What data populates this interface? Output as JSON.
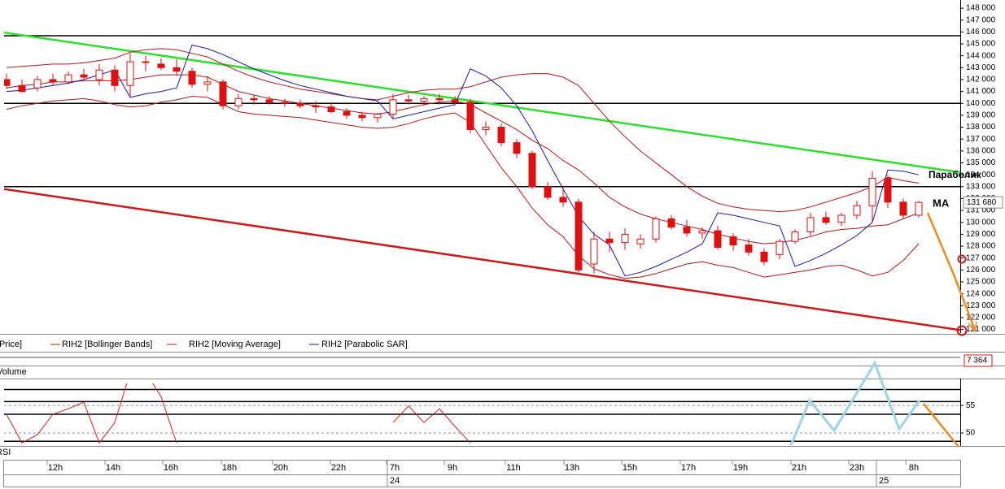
{
  "chart_data": [
    {
      "type": "candlestick",
      "ylim": [
        120700,
        148550
      ],
      "yticks": [
        {
          "value": 121000,
          "label": "121 000"
        },
        {
          "value": 122000,
          "label": "122 000"
        },
        {
          "value": 123000,
          "label": "123 000"
        },
        {
          "value": 124000,
          "label": "124 000"
        },
        {
          "value": 125000,
          "label": "125 000"
        },
        {
          "value": 126000,
          "label": "126 000"
        },
        {
          "value": 127000,
          "label": "127 000"
        },
        {
          "value": 128000,
          "label": "128 000"
        },
        {
          "value": 129000,
          "label": "129 000"
        },
        {
          "value": 130000,
          "label": "130 000"
        },
        {
          "value": 131000,
          "label": "131 000"
        },
        {
          "value": 132000,
          "label": "132 000"
        },
        {
          "value": 133000,
          "label": "133 000"
        },
        {
          "value": 134000,
          "label": "134 000"
        },
        {
          "value": 135000,
          "label": "135 000"
        },
        {
          "value": 136000,
          "label": "136 000"
        },
        {
          "value": 137000,
          "label": "137 000"
        },
        {
          "value": 138000,
          "label": "138 000"
        },
        {
          "value": 139000,
          "label": "139 000"
        },
        {
          "value": 140000,
          "label": "140 000"
        },
        {
          "value": 141000,
          "label": "141 000"
        },
        {
          "value": 142000,
          "label": "142 000"
        },
        {
          "value": 143000,
          "label": "143 000"
        },
        {
          "value": 144000,
          "label": "144 000"
        },
        {
          "value": 145000,
          "label": "145 000"
        },
        {
          "value": 146000,
          "label": "146 000"
        },
        {
          "value": 147000,
          "label": "147 000"
        },
        {
          "value": 148000,
          "label": "148 000"
        }
      ],
      "last_price": {
        "value": 131680,
        "label": "131 680"
      },
      "levels": [
        145680,
        140000,
        133000
      ],
      "trendlines": [
        {
          "color": "#2ee02e",
          "from": 145950,
          "to": 134200
        },
        {
          "color": "#cc1a1a",
          "from": 132800,
          "to": 120950
        }
      ],
      "annotations": [
        "Параболик",
        "MA"
      ],
      "series": [
        {
          "name": "Price]",
          "color": "#dd1111",
          "open": [
            142000,
            141500,
            141300,
            142000,
            141800,
            142400,
            142000,
            142800,
            141500,
            143500,
            143300,
            143000,
            142700,
            141600,
            141800,
            139800,
            140400,
            140300,
            140100,
            140000,
            139800,
            139700,
            139300,
            139000,
            138800,
            139100,
            140300,
            140200,
            140400,
            140300,
            140100,
            137800,
            138000,
            136700,
            135800,
            133000,
            132100,
            131700,
            126500,
            128600,
            128300,
            128200,
            128600,
            130300,
            129600,
            129100,
            129300,
            128800,
            128100,
            127500,
            127300,
            128400,
            129200,
            130400,
            130000,
            130600,
            131400,
            133700,
            131700,
            130600
          ],
          "high": [
            142500,
            142000,
            142300,
            142500,
            142700,
            142900,
            143300,
            143200,
            144200,
            144000,
            143800,
            143700,
            143000,
            142300,
            142000,
            140800,
            140700,
            140600,
            140400,
            140300,
            140200,
            140100,
            139600,
            139300,
            139200,
            140800,
            140700,
            140600,
            140800,
            140600,
            140400,
            138500,
            138300,
            137000,
            136000,
            133400,
            133000,
            132000,
            129200,
            129200,
            129500,
            129000,
            130500,
            130600,
            130200,
            129600,
            129700,
            129100,
            128600,
            127800,
            128600,
            129400,
            130800,
            130900,
            130800,
            131800,
            134300,
            134000,
            132000,
            131800
          ],
          "low": [
            141200,
            140900,
            141000,
            141500,
            141600,
            142000,
            141500,
            141000,
            140500,
            142700,
            142800,
            142300,
            141300,
            141000,
            139500,
            139500,
            139900,
            139900,
            139700,
            139600,
            139200,
            139200,
            138700,
            138500,
            138400,
            138700,
            139900,
            139800,
            139900,
            139800,
            137500,
            137300,
            136400,
            135400,
            132800,
            131900,
            131300,
            125700,
            125700,
            127500,
            127700,
            127800,
            128300,
            129400,
            128800,
            128600,
            127700,
            127600,
            127200,
            126400,
            126900,
            128200,
            128800,
            129800,
            129700,
            130300,
            130000,
            131200,
            130300,
            130400
          ],
          "close": [
            141500,
            141000,
            142000,
            141800,
            142400,
            142200,
            142800,
            141500,
            143500,
            143500,
            143000,
            142700,
            141600,
            141800,
            139800,
            140400,
            140300,
            140100,
            140000,
            139800,
            139700,
            139300,
            139000,
            138800,
            139100,
            140300,
            140200,
            140400,
            140300,
            140100,
            137800,
            138000,
            136700,
            135800,
            133000,
            132100,
            131700,
            126000,
            128600,
            128300,
            129000,
            128600,
            130300,
            129600,
            129100,
            129300,
            127900,
            128100,
            127500,
            126700,
            128400,
            129200,
            130400,
            130000,
            130600,
            131400,
            133700,
            131700,
            130600,
            131680
          ]
        },
        {
          "name": "RIH2 [Bollinger Bands]",
          "color": "#b01818",
          "upper": [
            143000,
            143100,
            143200,
            143300,
            143300,
            143400,
            143600,
            143800,
            144300,
            144500,
            144600,
            144500,
            144200,
            143900,
            143300,
            142700,
            142200,
            141800,
            141500,
            141200,
            141000,
            140800,
            140600,
            140400,
            140300,
            140600,
            140900,
            141100,
            141200,
            141200,
            141400,
            141800,
            142200,
            142400,
            142500,
            142500,
            142200,
            141500,
            140000,
            138500,
            137200,
            136000,
            135000,
            134000,
            133000,
            132200,
            131600,
            131300,
            131100,
            131000,
            130900,
            131000,
            131300,
            131700,
            132100,
            132500,
            133000,
            133800,
            133500,
            133300
          ],
          "lower": [
            139500,
            139800,
            140000,
            140200,
            140300,
            140400,
            140200,
            139900,
            139700,
            139800,
            140100,
            140300,
            140600,
            140500,
            139900,
            139300,
            139100,
            139000,
            138900,
            138800,
            138600,
            138400,
            138200,
            138000,
            137900,
            138000,
            138300,
            138700,
            139000,
            139200,
            138400,
            136500,
            134600,
            133000,
            131200,
            129800,
            128800,
            127200,
            126100,
            125600,
            125300,
            125400,
            125700,
            126100,
            126500,
            126700,
            126400,
            126200,
            125800,
            125400,
            125600,
            125800,
            126000,
            126300,
            126400,
            126000,
            125500,
            125800,
            126800,
            128200
          ]
        },
        {
          "name": "RIH2 [Moving Average]",
          "color": "#b01818",
          "values": [
            141300,
            141500,
            141600,
            141800,
            141800,
            141900,
            141900,
            141900,
            142000,
            142200,
            142400,
            142400,
            142400,
            142200,
            141600,
            141000,
            140700,
            140400,
            140200,
            140000,
            139800,
            139600,
            139400,
            139200,
            139100,
            139300,
            139600,
            139900,
            140100,
            140200,
            139900,
            139200,
            138500,
            137800,
            136900,
            136200,
            135200,
            134400,
            133300,
            132100,
            131300,
            130700,
            130300,
            130000,
            129700,
            129400,
            129000,
            128700,
            128400,
            128200,
            128300,
            128500,
            128800,
            129200,
            129400,
            129500,
            129700,
            129800,
            130300,
            130800
          ]
        },
        {
          "name": "RIH2 [Parabolic SAR]",
          "color": "#1a1aa0",
          "values": [
            141000,
            141100,
            141300,
            141500,
            141700,
            142000,
            142400,
            142800,
            140500,
            140800,
            141000,
            141300,
            144900,
            144600,
            144100,
            143500,
            142900,
            142400,
            141900,
            141500,
            141200,
            140900,
            140600,
            140400,
            140200,
            138700,
            139000,
            139300,
            139600,
            139900,
            142900,
            142300,
            141300,
            139800,
            137700,
            135200,
            132800,
            130500,
            129000,
            128100,
            125500,
            125800,
            126300,
            126900,
            127500,
            128200,
            130800,
            130600,
            130300,
            130000,
            129700,
            126300,
            126800,
            127400,
            128100,
            128900,
            130000,
            134400,
            134300,
            134000
          ]
        }
      ]
    },
    {
      "type": "volume",
      "label": "Volume",
      "last_value": {
        "value": 7364,
        "label": "7 364"
      }
    },
    {
      "type": "line",
      "label": "RSI",
      "color": "#cc2222",
      "ylim": [
        47.8,
        59.0
      ],
      "yticks": [
        50,
        55
      ],
      "levels": [
        57.9,
        55.7,
        53.4,
        48.5
      ],
      "values": [
        53.4,
        48.2,
        49.7,
        53.4,
        54.4,
        55.6,
        48.2,
        51.9,
        61,
        61,
        56.6,
        48.2,
        null,
        null,
        null,
        null,
        null,
        null,
        null,
        null,
        null,
        null,
        null,
        null,
        null,
        51.9,
        54.9,
        51.9,
        54.4,
        51.2,
        48.2,
        null,
        null,
        null,
        null,
        null,
        null,
        null,
        null,
        null,
        null,
        null,
        null,
        null,
        null,
        null,
        null,
        null,
        null,
        null,
        null,
        null,
        null,
        null,
        null,
        null,
        null,
        null,
        null,
        null
      ]
    }
  ],
  "time_axis": {
    "labels": [
      "12h",
      "14h",
      "16h",
      "18h",
      "20h",
      "22h",
      "7h",
      "9h",
      "11h",
      "13h",
      "15h",
      "17h",
      "19h",
      "21h",
      "23h",
      "8h"
    ],
    "dates": [
      "24",
      "25"
    ]
  }
}
